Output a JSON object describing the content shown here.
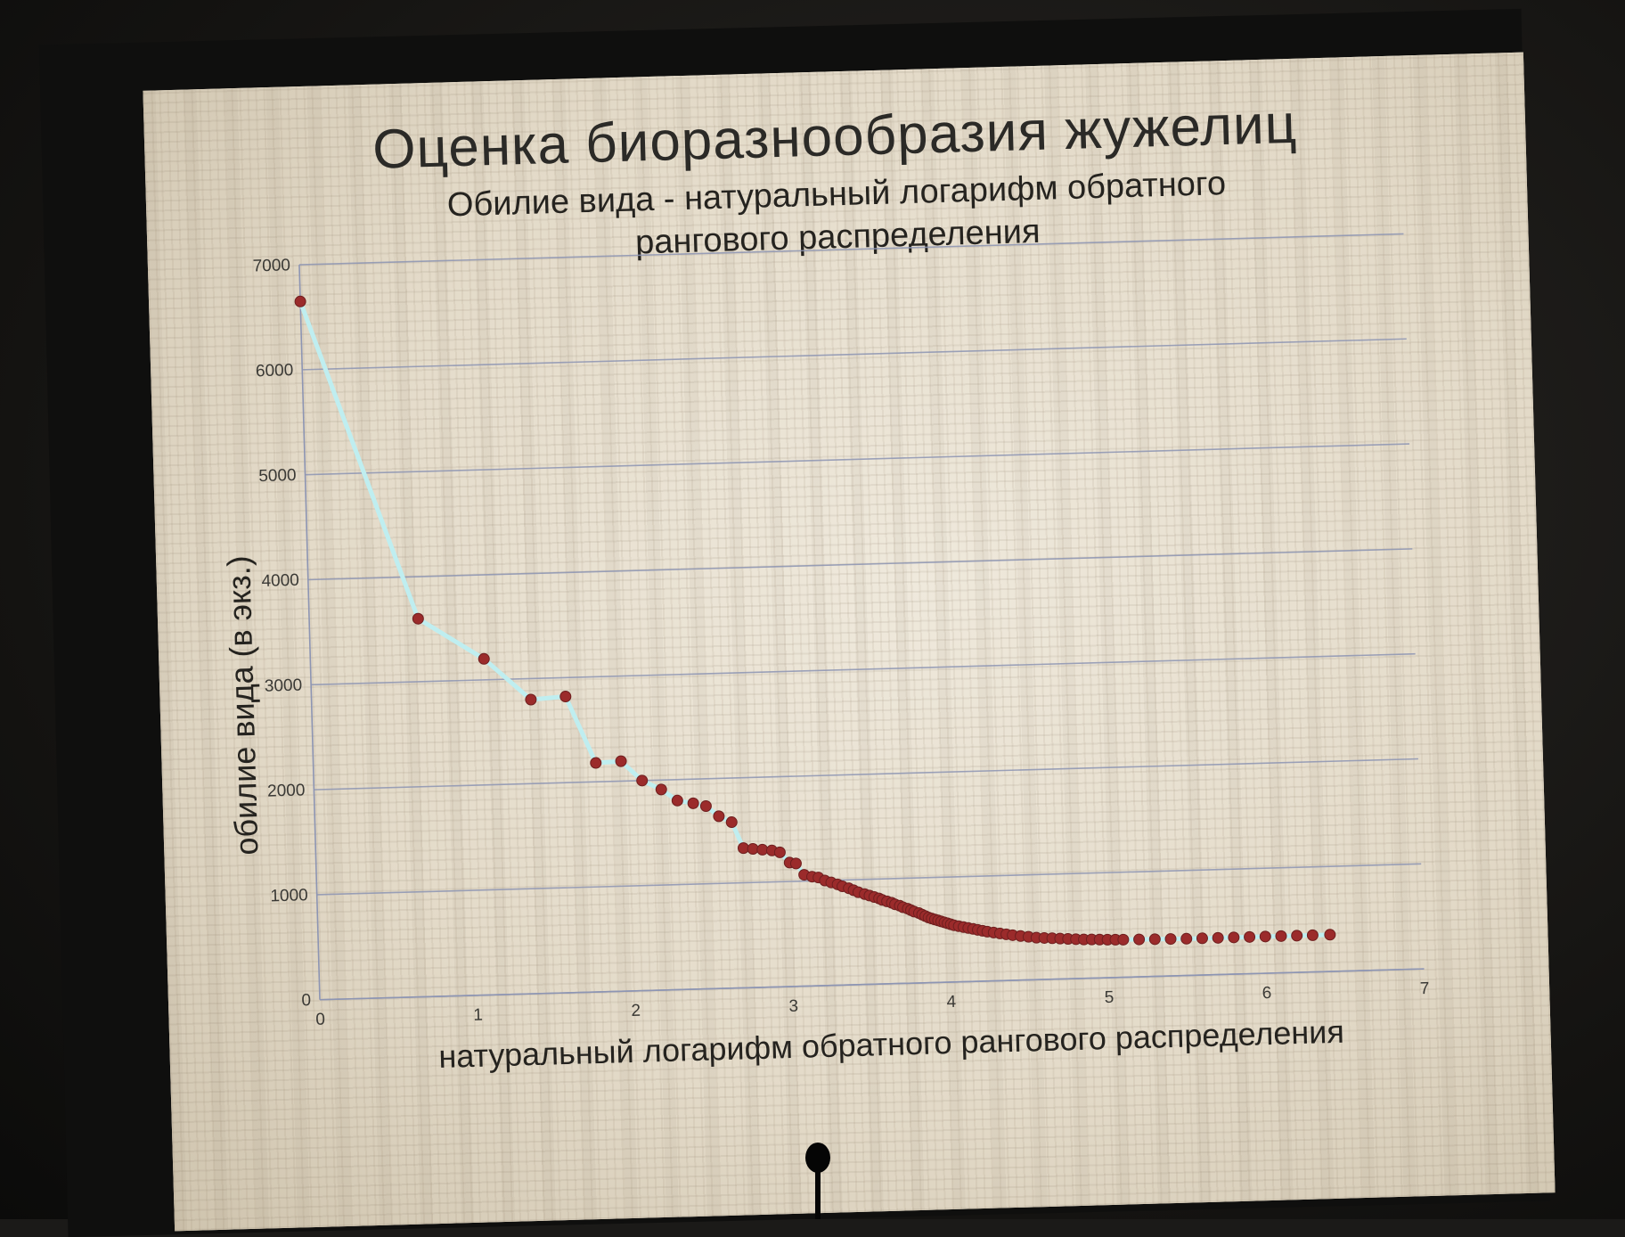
{
  "slide": {
    "title": "Оценка биоразнообразия жужелиц"
  },
  "chart_data": {
    "type": "scatter",
    "title": "Обилие вида - натуральный логарифм обратного рангового распределения",
    "title_lines": [
      "Обилие вида - натуральный логарифм обратного",
      "рангового распределения"
    ],
    "xlabel": "натуральный логарифм обратного рангового распределения",
    "ylabel": "обилие вида (в экз.)",
    "xlim": [
      0,
      7
    ],
    "ylim": [
      0,
      7000
    ],
    "x_ticks": [
      "0",
      "1",
      "2",
      "3",
      "4",
      "5",
      "6",
      "7"
    ],
    "y_ticks": [
      "0",
      "1000",
      "2000",
      "3000",
      "4000",
      "5000",
      "6000",
      "7000"
    ],
    "grid": "horizontal",
    "legend": "none",
    "marker_color": "#9b2b2b",
    "line_color": "#bfeef0",
    "series": [
      {
        "points": [
          [
            0.0,
            6650
          ],
          [
            0.69,
            3600
          ],
          [
            1.1,
            3200
          ],
          [
            1.39,
            2800
          ],
          [
            1.61,
            2820
          ],
          [
            1.79,
            2180
          ],
          [
            1.95,
            2190
          ],
          [
            2.08,
            2000
          ],
          [
            2.2,
            1910
          ],
          [
            2.3,
            1800
          ],
          [
            2.4,
            1770
          ],
          [
            2.48,
            1740
          ],
          [
            2.56,
            1640
          ],
          [
            2.64,
            1580
          ],
          [
            2.71,
            1330
          ],
          [
            2.77,
            1320
          ],
          [
            2.83,
            1310
          ],
          [
            2.89,
            1300
          ],
          [
            2.94,
            1280
          ],
          [
            3.0,
            1180
          ],
          [
            3.04,
            1170
          ],
          [
            3.09,
            1060
          ],
          [
            3.14,
            1040
          ],
          [
            3.18,
            1030
          ],
          [
            3.22,
            1000
          ],
          [
            3.26,
            980
          ],
          [
            3.3,
            960
          ],
          [
            3.33,
            940
          ],
          [
            3.37,
            920
          ],
          [
            3.4,
            900
          ],
          [
            3.43,
            880
          ],
          [
            3.47,
            860
          ],
          [
            3.5,
            845
          ],
          [
            3.53,
            830
          ],
          [
            3.56,
            815
          ],
          [
            3.58,
            800
          ],
          [
            3.61,
            785
          ],
          [
            3.64,
            770
          ],
          [
            3.66,
            755
          ],
          [
            3.69,
            740
          ],
          [
            3.71,
            725
          ],
          [
            3.74,
            710
          ],
          [
            3.76,
            695
          ],
          [
            3.78,
            680
          ],
          [
            3.81,
            665
          ],
          [
            3.83,
            650
          ],
          [
            3.85,
            635
          ],
          [
            3.87,
            620
          ],
          [
            3.89,
            610
          ],
          [
            3.91,
            600
          ],
          [
            3.93,
            590
          ],
          [
            3.95,
            580
          ],
          [
            3.97,
            570
          ],
          [
            3.99,
            560
          ],
          [
            4.01,
            550
          ],
          [
            4.03,
            540
          ],
          [
            4.06,
            530
          ],
          [
            4.09,
            520
          ],
          [
            4.12,
            510
          ],
          [
            4.15,
            500
          ],
          [
            4.18,
            490
          ],
          [
            4.21,
            480
          ],
          [
            4.24,
            470
          ],
          [
            4.28,
            460
          ],
          [
            4.32,
            450
          ],
          [
            4.36,
            440
          ],
          [
            4.4,
            430
          ],
          [
            4.45,
            420
          ],
          [
            4.5,
            410
          ],
          [
            4.55,
            400
          ],
          [
            4.6,
            395
          ],
          [
            4.65,
            390
          ],
          [
            4.7,
            385
          ],
          [
            4.75,
            380
          ],
          [
            4.8,
            375
          ],
          [
            4.85,
            370
          ],
          [
            4.9,
            368
          ],
          [
            4.95,
            365
          ],
          [
            5.0,
            362
          ],
          [
            5.05,
            360
          ],
          [
            5.1,
            358
          ],
          [
            5.2,
            356
          ],
          [
            5.3,
            354
          ],
          [
            5.4,
            352
          ],
          [
            5.5,
            350
          ],
          [
            5.6,
            350
          ],
          [
            5.7,
            350
          ],
          [
            5.8,
            350
          ],
          [
            5.9,
            350
          ],
          [
            6.0,
            350
          ],
          [
            6.1,
            350
          ],
          [
            6.2,
            350
          ],
          [
            6.3,
            350
          ],
          [
            6.41,
            350
          ]
        ]
      }
    ]
  }
}
